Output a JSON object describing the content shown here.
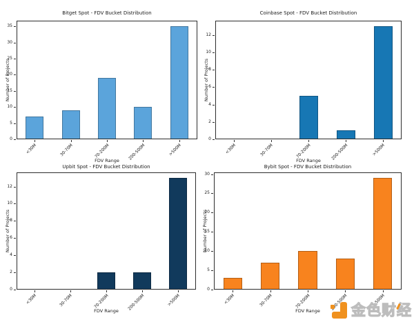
{
  "figure": {
    "background": "#ffffff",
    "spine_color": "#2b2b2b",
    "text_color": "#1a1a1a"
  },
  "chart_data": [
    {
      "type": "bar",
      "title": "Bitget Spot - FDV Bucket Distribution",
      "xlabel": "FDV Range",
      "ylabel": "Number of Projects",
      "categories": [
        "<30M",
        "30-70M",
        "70-200M",
        "200-500M",
        ">500M"
      ],
      "values": [
        7,
        9,
        19,
        10,
        35
      ],
      "yticks": [
        0,
        5,
        10,
        15,
        20,
        25,
        30,
        35
      ],
      "ylim": [
        0,
        36.75
      ],
      "bar_color": "#5BA4DB",
      "grid": false,
      "legend": "none"
    },
    {
      "type": "bar",
      "title": "Coinbase Spot - FDV Bucket Distribution",
      "xlabel": "FDV Range",
      "ylabel": "Number of Projects",
      "categories": [
        "<30M",
        "30-70M",
        "70-200M",
        "200-500M",
        ">500M"
      ],
      "values": [
        0,
        0,
        5,
        1,
        13
      ],
      "yticks": [
        0,
        2,
        4,
        6,
        8,
        10,
        12
      ],
      "ylim": [
        0,
        13.65
      ],
      "bar_color": "#1777B4",
      "grid": false,
      "legend": "none"
    },
    {
      "type": "bar",
      "title": "Upbit Spot - FDV Bucket Distribution",
      "xlabel": "FDV Range",
      "ylabel": "Number of Projects",
      "categories": [
        "<30M",
        "30-70M",
        "70-200M",
        "200-500M",
        ">500M"
      ],
      "values": [
        0,
        0,
        2,
        2,
        13
      ],
      "yticks": [
        0,
        2,
        4,
        6,
        8,
        10,
        12
      ],
      "ylim": [
        0,
        13.65
      ],
      "bar_color": "#113A5C",
      "grid": false,
      "legend": "none"
    },
    {
      "type": "bar",
      "title": "Bybit Spot - FDV Bucket Distribution",
      "xlabel": "FDV Range",
      "ylabel": "Number of Projects",
      "categories": [
        "<30M",
        "30-70M",
        "70-200M",
        "200-500M",
        ">500M"
      ],
      "values": [
        3,
        7,
        10,
        8,
        29
      ],
      "yticks": [
        0,
        5,
        10,
        15,
        20,
        25,
        30
      ],
      "ylim": [
        0,
        30.45
      ],
      "bar_color": "#F8831E",
      "grid": false,
      "legend": "none"
    }
  ],
  "watermark": {
    "text": "金色财经",
    "logo": "jinse-pixel-j-logo",
    "logo_color": "#F0911E",
    "text_fill": "#ffffff",
    "text_outline": "#bdbdbd",
    "accent_color": "#F0911E"
  }
}
